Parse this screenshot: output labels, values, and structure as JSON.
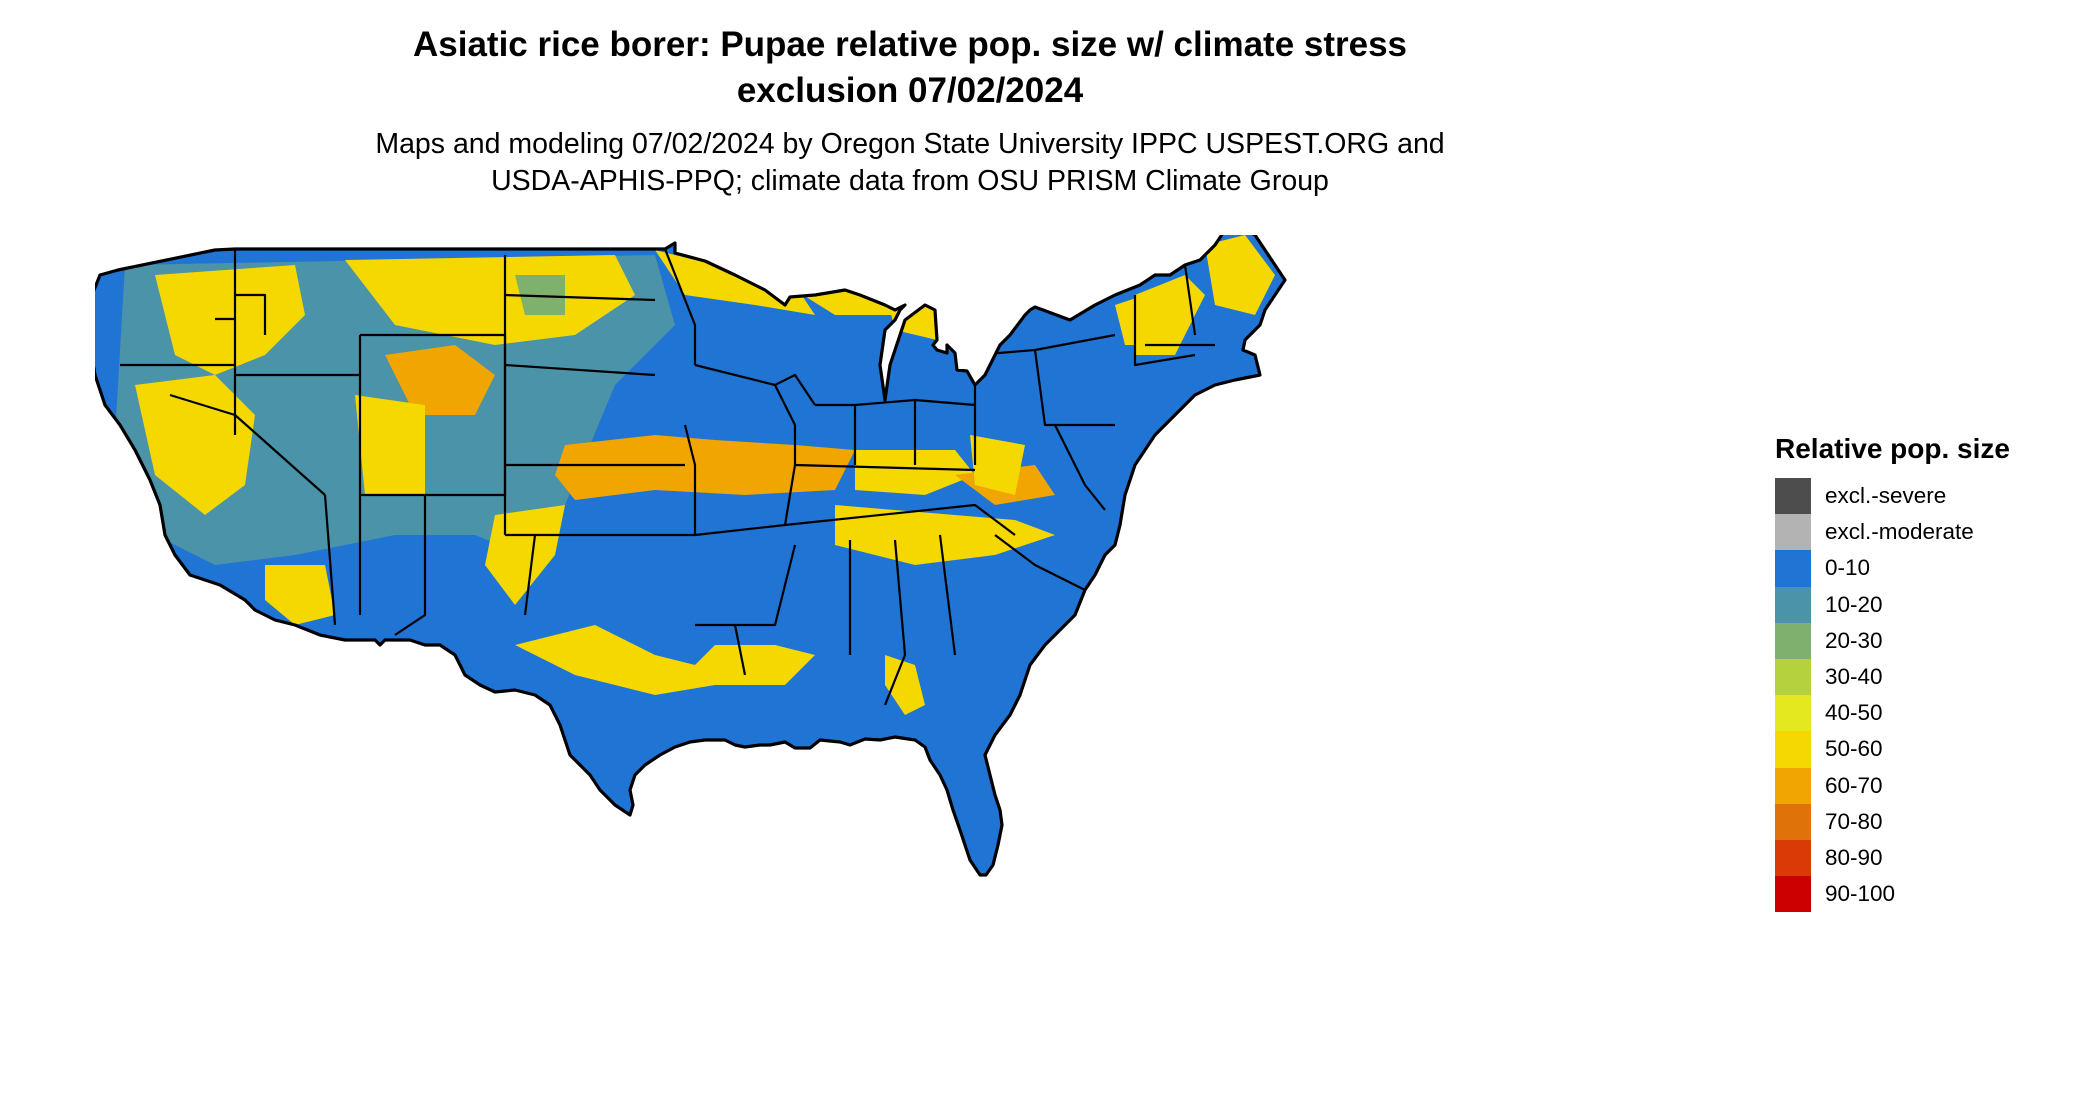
{
  "title_line1": "Asiatic rice borer: Pupae relative pop. size w/ climate stress",
  "title_line2": "exclusion 07/02/2024",
  "subtitle_line1": "Maps and modeling 07/02/2024 by Oregon State University IPPC USPEST.ORG and",
  "subtitle_line2": "USDA-APHIS-PPQ; climate data from OSU PRISM Climate Group",
  "legend": {
    "title": "Relative pop. size",
    "items": [
      {
        "label": "excl.-severe",
        "color": "#4d4d4d"
      },
      {
        "label": "excl.-moderate",
        "color": "#b3b3b3"
      },
      {
        "label": "0-10",
        "color": "#1f74d4"
      },
      {
        "label": "10-20",
        "color": "#4a93a8"
      },
      {
        "label": "20-30",
        "color": "#7fb06e"
      },
      {
        "label": "30-40",
        "color": "#b6d13e"
      },
      {
        "label": "40-50",
        "color": "#e4e81e"
      },
      {
        "label": "50-60",
        "color": "#f5d800"
      },
      {
        "label": "60-70",
        "color": "#f0a500"
      },
      {
        "label": "70-80",
        "color": "#e0720a"
      },
      {
        "label": "80-90",
        "color": "#d93a06"
      },
      {
        "label": "90-100",
        "color": "#cc0000"
      }
    ]
  }
}
